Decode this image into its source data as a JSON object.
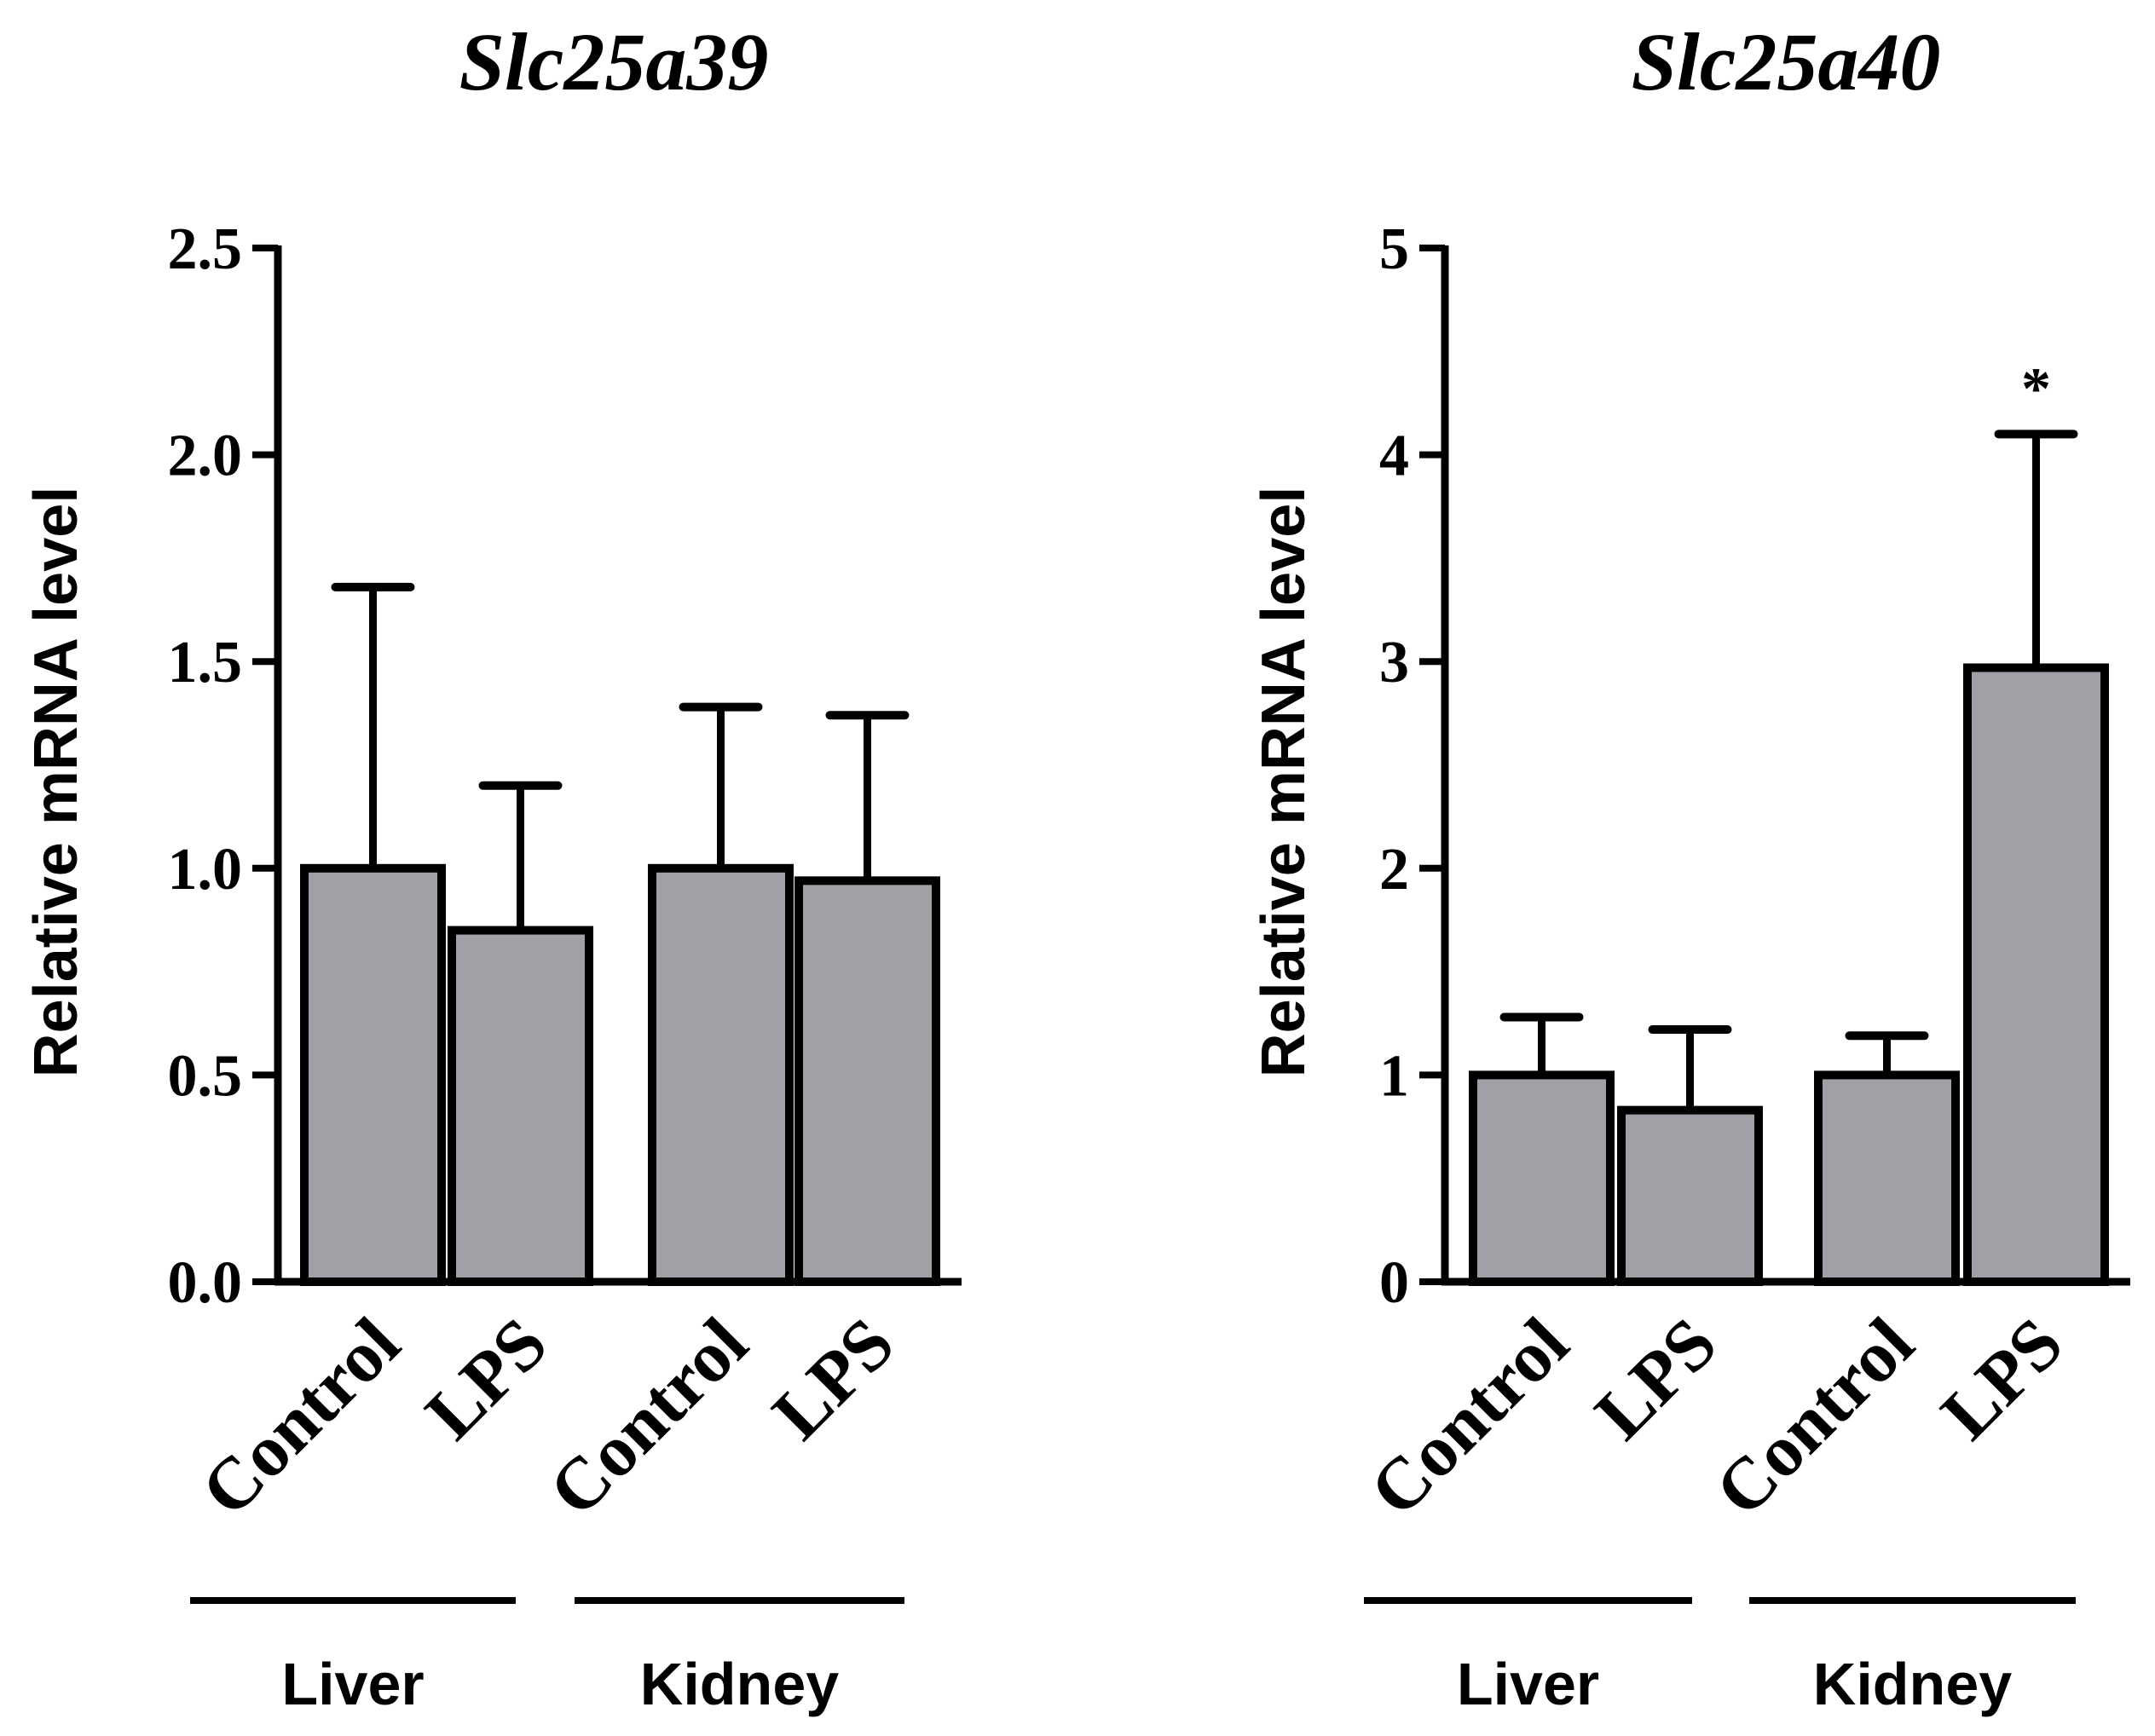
{
  "chart_data": [
    {
      "type": "bar",
      "title": "Slc25a39",
      "ylabel": "Relative mRNA level",
      "ylim": [
        0,
        2.5
      ],
      "yticks": [
        "0.0",
        "0.5",
        "1.0",
        "1.5",
        "2.0",
        "2.5"
      ],
      "categories": [
        "Control",
        "LPS",
        "Control",
        "LPS"
      ],
      "groups": [
        {
          "label": "Liver",
          "members": [
            0,
            1
          ]
        },
        {
          "label": "Kidney",
          "members": [
            2,
            3
          ]
        }
      ],
      "values": [
        1.0,
        0.85,
        1.0,
        0.97
      ],
      "error_upper": [
        1.68,
        1.2,
        1.39,
        1.37
      ],
      "annotations": [
        "",
        "",
        "",
        ""
      ],
      "bar_color": "#a0a0a6"
    },
    {
      "type": "bar",
      "title": "Slc25a40",
      "ylabel": "Relative mRNA level",
      "ylim": [
        0,
        5
      ],
      "yticks": [
        "0",
        "1",
        "2",
        "3",
        "4",
        "5"
      ],
      "categories": [
        "Control",
        "LPS",
        "Control",
        "LPS"
      ],
      "groups": [
        {
          "label": "Liver",
          "members": [
            0,
            1
          ]
        },
        {
          "label": "Kidney",
          "members": [
            2,
            3
          ]
        }
      ],
      "values": [
        1.0,
        0.83,
        1.0,
        2.97
      ],
      "error_upper": [
        1.28,
        1.22,
        1.19,
        4.1
      ],
      "annotations": [
        "",
        "",
        "",
        "*"
      ],
      "bar_color": "#a0a0a6"
    }
  ]
}
